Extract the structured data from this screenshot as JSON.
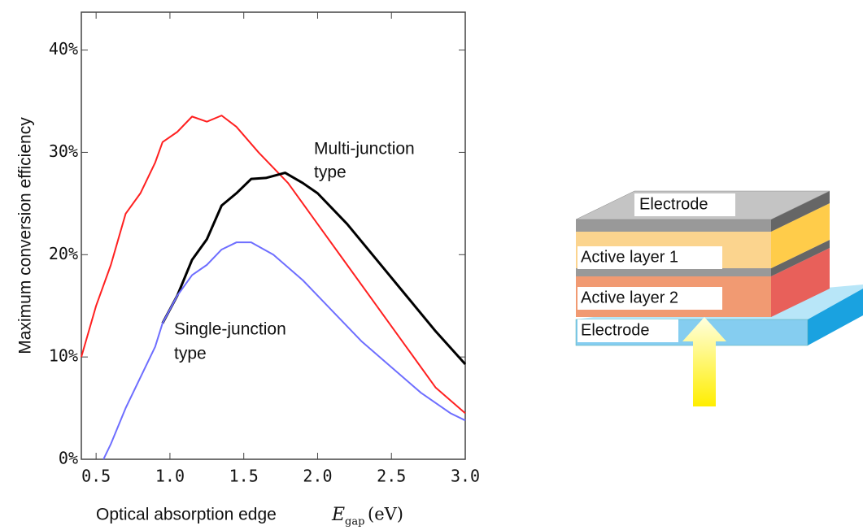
{
  "chart_data": {
    "type": "line",
    "ylabel": "Maximum conversion efficiency",
    "xlabel": {
      "text": "Optical absorption edge",
      "symbol": "E",
      "subscript": "gap",
      "unit": "(eV)"
    },
    "xlim": [
      0.4,
      3.0
    ],
    "xticks": [
      0.5,
      {
        "value": 1.0,
        "label": "1.0"
      },
      1.5,
      {
        "value": 2.0,
        "label": "2.0"
      },
      2.5,
      {
        "value": 3.0,
        "label": "3.0"
      }
    ],
    "ylim": [
      0,
      43.7
    ],
    "yticks": [
      {
        "value": 0,
        "label": "0%"
      },
      {
        "value": 10,
        "label": "10%"
      },
      {
        "value": 20,
        "label": "20%"
      },
      {
        "value": 30,
        "label": "30%"
      },
      {
        "value": 40,
        "label": "40%"
      }
    ],
    "series": [
      {
        "color": "#ff2020",
        "x": [
          0.4,
          0.5,
          0.6,
          0.7,
          0.8,
          0.9,
          0.95,
          1.05,
          1.15,
          1.25,
          1.35,
          1.45,
          1.6,
          1.8,
          2.0,
          2.2,
          2.4,
          2.6,
          2.8,
          3.0
        ],
        "values": [
          10,
          15,
          19,
          24,
          26,
          29,
          31,
          32,
          33.5,
          33,
          33.6,
          32.5,
          30,
          27,
          23,
          19,
          15,
          11,
          7,
          4.5
        ]
      },
      {
        "color": "#000000",
        "x": [
          0.95,
          1.05,
          1.15,
          1.25,
          1.35,
          1.45,
          1.55,
          1.65,
          1.78,
          1.9,
          2.0,
          2.2,
          2.4,
          2.6,
          2.8,
          3.0
        ],
        "values": [
          13.3,
          16,
          19.5,
          21.5,
          24.8,
          26,
          27.4,
          27.5,
          28,
          27,
          26,
          23,
          19.5,
          16,
          12.5,
          9.3
        ]
      },
      {
        "color": "#6e6eff",
        "x": [
          0.55,
          0.6,
          0.7,
          0.8,
          0.9,
          0.95,
          1.05,
          1.15,
          1.25,
          1.35,
          1.45,
          1.55,
          1.7,
          1.9,
          2.1,
          2.3,
          2.5,
          2.7,
          2.9,
          3.0
        ],
        "values": [
          0,
          1.5,
          5,
          8,
          11,
          13.3,
          16,
          18,
          19,
          20.5,
          21.2,
          21.2,
          20,
          17.5,
          14.5,
          11.5,
          9,
          6.5,
          4.5,
          3.8
        ]
      }
    ],
    "annotations": [
      {
        "lines": [
          "Multi-junction",
          "type"
        ]
      },
      {
        "lines": [
          "Single-junction",
          "type"
        ]
      }
    ]
  },
  "diagram": {
    "layers": [
      "Electrode",
      "Active layer 1",
      "Active layer 2",
      "Electrode"
    ]
  }
}
